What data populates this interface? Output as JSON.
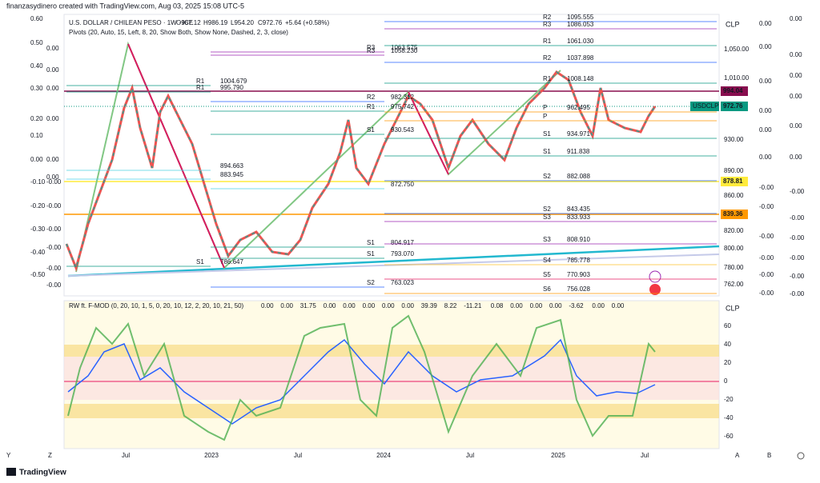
{
  "header": {
    "author": "finanzasydinero created with TradingView.com, Aug 03, 2025 15:08 UTC-5",
    "symbol": "U.S. DOLLAR / CHILEAN PESO · 1W · ICE",
    "ohlc": [
      "O967.12",
      "H986.19",
      "L954.20",
      "C972.76",
      "+5.64 (+0.58%)"
    ],
    "indicator": "Pivots (20, Auto, 15, Left, 8, 20, Show Both, Show None, Dashed, 2, 3, close)"
  },
  "pivots": [
    {
      "level": "R1",
      "value": "1004.679"
    },
    {
      "level": "R1",
      "value": "995.790"
    },
    {
      "value": "894.663"
    },
    {
      "value": "883.945"
    },
    {
      "level": "S1",
      "value": "786.647"
    },
    {
      "level": "R3",
      "value": "1063.575"
    },
    {
      "level": "R3",
      "value": "1058.230"
    },
    {
      "level": "R2",
      "value": "982.312"
    },
    {
      "level": "R1",
      "value": "975.742"
    },
    {
      "level": "S1",
      "value": "930.543"
    },
    {
      "value": "872.750"
    },
    {
      "level": "S1",
      "value": "804.917"
    },
    {
      "level": "S1",
      "value": "793.070"
    },
    {
      "level": "S2",
      "value": "763.023"
    },
    {
      "level": "R2",
      "value": "1095.555"
    },
    {
      "level": "R3",
      "value": "1086.053"
    },
    {
      "level": "R1",
      "value": "1061.030"
    },
    {
      "level": "R2",
      "value": "1037.898"
    },
    {
      "level": "R1",
      "value": "1008.148"
    },
    {
      "level": "P",
      "value": "962.495"
    },
    {
      "level": "P"
    },
    {
      "level": "S1",
      "value": "934.971"
    },
    {
      "level": "S1",
      "value": "911.838"
    },
    {
      "level": "S2",
      "value": "882.088"
    },
    {
      "level": "S2",
      "value": "843.435"
    },
    {
      "level": "S3",
      "value": "833.933"
    },
    {
      "level": "S3",
      "value": "808.910"
    },
    {
      "level": "S4",
      "value": "785.778"
    },
    {
      "level": "S5",
      "value": "770.903"
    },
    {
      "level": "S6",
      "value": "756.028"
    }
  ],
  "price_axis": {
    "currency": "CLP",
    "labels": [
      "1,050.00",
      "1,010.00",
      "930.00",
      "890.00",
      "860.00",
      "820.00",
      "800.00",
      "780.00",
      "762.00"
    ],
    "badges": [
      {
        "value": "994.04",
        "color": "#880e4f"
      },
      {
        "symbol": "USDCLP",
        "value": "972.76",
        "color": "#089981"
      },
      {
        "value": "878.81",
        "color": "#ffeb3b"
      },
      {
        "value": "839.36",
        "color": "#ff9800"
      }
    ]
  },
  "left_axis_a": [
    "0.60",
    "0.50",
    "0.40",
    "0.30",
    "0.20",
    "0.10",
    "0.00",
    "-0.10",
    "-0.20",
    "-0.30",
    "-0.40",
    "-0.50"
  ],
  "left_axis_b": [
    "0.00",
    "0.00",
    "0.00",
    "0.00",
    "0.00",
    "0.00",
    "-0.00",
    "-0.00",
    "-0.00",
    "-0.00",
    "-0.00",
    "-0.00"
  ],
  "right_axis_a": [
    "0.00",
    "0.00",
    "0.00",
    "0.00",
    "0.00",
    "0.00",
    "-0.00",
    "-0.00",
    "-0.00",
    "-0.00",
    "-0.00",
    "-0.00"
  ],
  "right_axis_b": [
    "0.00",
    "0.00",
    "0.00",
    "0.00",
    "0.00",
    "0.00",
    "-0.00",
    "-0.00",
    "-0.00",
    "-0.00",
    "-0.00",
    "-0.00"
  ],
  "oscillator": {
    "title": "RW ft. F-MOD (0, 20, 10, 1, 5, 0, 20, 10, 12, 2, 20, 10, 21, 50)",
    "readings": [
      {
        "text": "0.00",
        "color": "#ff9800"
      },
      {
        "text": "0.00",
        "color": "#ff9800"
      },
      {
        "text": "31.75",
        "color": "#9c27b0"
      },
      {
        "text": "0.00",
        "color": "#9c27b0"
      },
      {
        "text": "0.00",
        "color": "#e91e63"
      },
      {
        "text": "0.00",
        "color": "#f23645"
      },
      {
        "text": "0.00",
        "color": "#2962ff"
      },
      {
        "text": "0.00",
        "color": "#4caf50"
      },
      {
        "text": "39.39",
        "color": "#4caf50"
      },
      {
        "text": "8.22",
        "color": "#f23645"
      },
      {
        "text": "-11.21",
        "color": "#9c27b0"
      },
      {
        "text": "0.08",
        "color": "#ff9800"
      },
      {
        "text": "0.00",
        "color": "#2962ff"
      },
      {
        "text": "0.00",
        "color": "#2962ff"
      },
      {
        "text": "0.00",
        "color": "#2962ff"
      },
      {
        "text": "-3.62",
        "color": "#9c27b0"
      },
      {
        "text": "0.00",
        "color": "#f23645"
      },
      {
        "text": "0.00",
        "color": "#f23645"
      }
    ],
    "currency": "CLP",
    "ticks": [
      "60",
      "40",
      "20",
      "0",
      "-20",
      "-40",
      "-60"
    ]
  },
  "time_axis": [
    "Jul",
    "2023",
    "Jul",
    "2024",
    "Jul",
    "2025",
    "Jul"
  ],
  "bottom_bar": {
    "left": [
      "Y",
      "Z"
    ],
    "right": [
      "A",
      "B"
    ]
  },
  "footer": "TradingView"
}
